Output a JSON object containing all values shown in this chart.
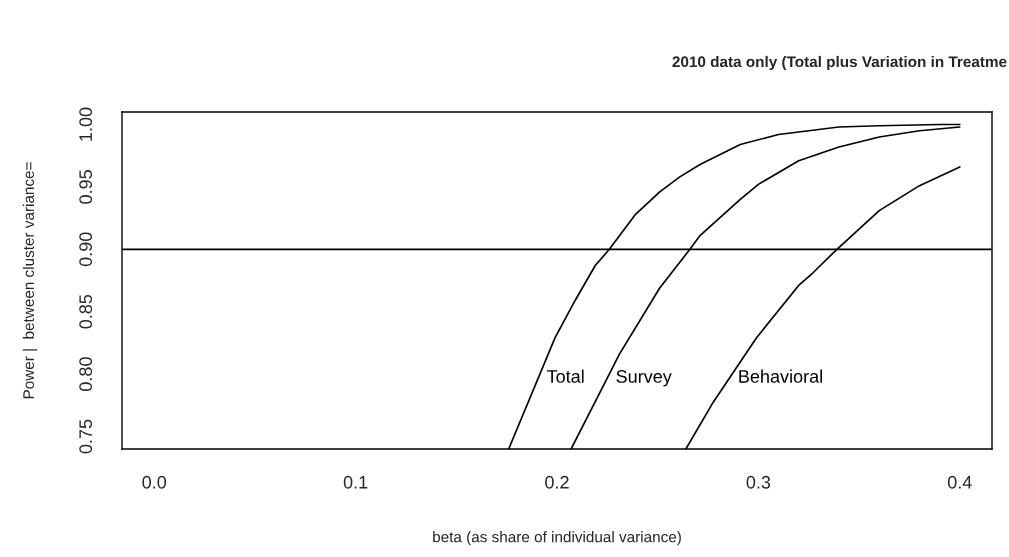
{
  "chart_data": {
    "type": "line",
    "title": "2010 data only (Total plus Variation in Treatme",
    "xlabel": "beta (as share of individual variance)",
    "ylabel": "Power |  between cluster variance=",
    "xlim": [
      -0.016,
      0.416
    ],
    "ylim": [
      0.74,
      1.01
    ],
    "xticks": [
      {
        "value": 0,
        "label": "0.0"
      },
      0.1,
      0.2,
      0.3,
      0.4
    ],
    "yticks": [
      {
        "value": 0.75,
        "label": "0.75"
      },
      {
        "value": 0.8,
        "label": "0.80"
      },
      {
        "value": 0.85,
        "label": "0.85"
      },
      {
        "value": 0.9,
        "label": "0.90"
      },
      {
        "value": 0.95,
        "label": "0.95"
      },
      {
        "value": 1.0,
        "label": "1.00"
      }
    ],
    "grid": false,
    "legend": false,
    "marker": "none",
    "line_style": "solid",
    "series": [
      {
        "name": "Total",
        "color": "#000000",
        "x": [
          0.176,
          0.199,
          0.209,
          0.219,
          0.226,
          0.239,
          0.251,
          0.261,
          0.271,
          0.291,
          0.31,
          0.34,
          0.36,
          0.39,
          0.4
        ],
        "values": [
          0.74,
          0.829,
          0.859,
          0.887,
          0.9,
          0.928,
          0.946,
          0.958,
          0.968,
          0.984,
          0.992,
          0.998,
          0.999,
          1.0,
          1.0
        ]
      },
      {
        "name": "Survey",
        "color": "#000000",
        "x": [
          0.207,
          0.219,
          0.231,
          0.251,
          0.266,
          0.271,
          0.291,
          0.3,
          0.32,
          0.34,
          0.36,
          0.38,
          0.4
        ],
        "values": [
          0.74,
          0.778,
          0.816,
          0.869,
          0.9,
          0.911,
          0.94,
          0.952,
          0.971,
          0.982,
          0.99,
          0.995,
          0.998
        ]
      },
      {
        "name": "Behavioral",
        "color": "#000000",
        "x": [
          0.264,
          0.277,
          0.299,
          0.32,
          0.327,
          0.339,
          0.36,
          0.38,
          0.4
        ],
        "values": [
          0.74,
          0.776,
          0.829,
          0.871,
          0.881,
          0.9,
          0.931,
          0.951,
          0.966
        ]
      }
    ],
    "ref_lines": [
      {
        "axis": "y",
        "value": 0.9,
        "color": "#000000",
        "line_style": "solid"
      }
    ]
  }
}
